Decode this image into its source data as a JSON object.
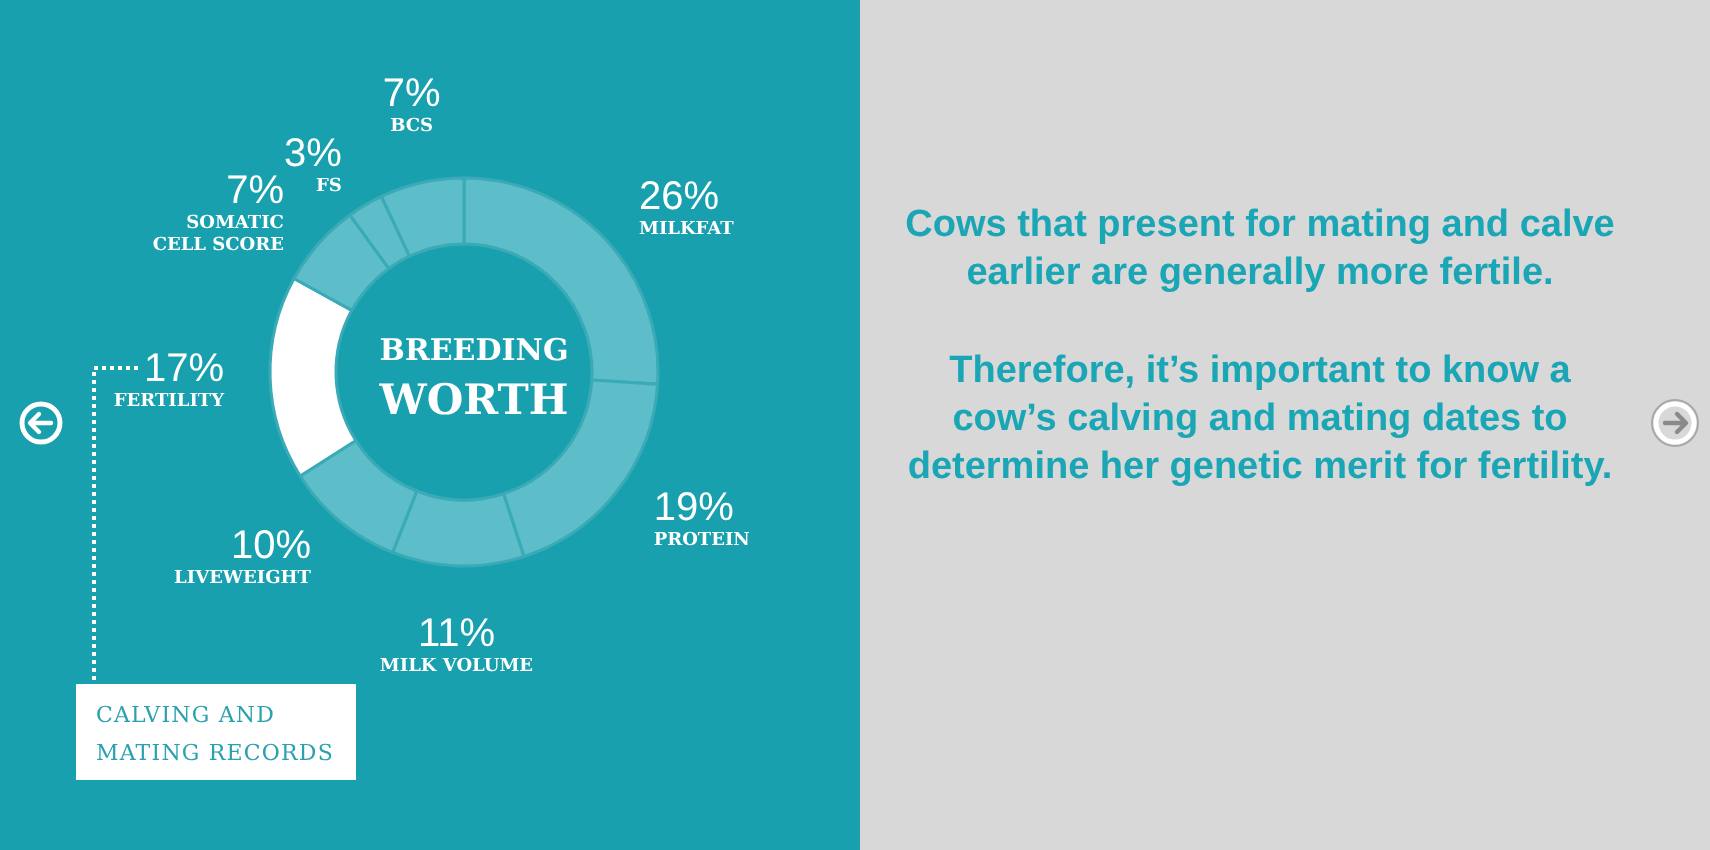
{
  "chart_data": {
    "type": "donut",
    "title": "BREEDING WORTH",
    "categories": [
      "MILKFAT",
      "PROTEIN",
      "MILK VOLUME",
      "LIVEWEIGHT",
      "FERTILITY",
      "SOMATIC CELL SCORE",
      "FS",
      "BCS"
    ],
    "values": [
      26,
      19,
      11,
      10,
      17,
      7,
      3,
      7
    ],
    "colors": [
      "#5dbdc8",
      "#5dbdc8",
      "#5dbdc8",
      "#5dbdc8",
      "#ffffff",
      "#5dbdc8",
      "#5dbdc8",
      "#5dbdc8"
    ],
    "value_labels": [
      "26%",
      "19%",
      "11%",
      "10%",
      "17%",
      "7%",
      "3%",
      "7%"
    ],
    "annotations": [
      "CALVING AND MATING RECORDS",
      "Cows that present for mating and calve earlier are generally more fertile.",
      "Therefore, it’s important to know a cow’s calving and mating dates to determine her genetic merit for fertility."
    ]
  }
}
